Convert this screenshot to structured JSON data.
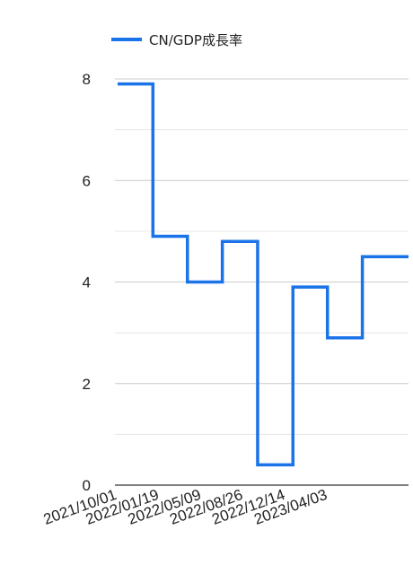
{
  "chart_data": {
    "type": "line",
    "step": true,
    "x_tick_labels": [
      "2021/10/01",
      "2022/01/19",
      "2022/05/09",
      "2022/08/26",
      "2022/12/14",
      "2023/04/03"
    ],
    "y_ticks": [
      "0",
      "2",
      "4",
      "6",
      "8"
    ],
    "ylim": [
      0,
      8
    ],
    "grid": true,
    "legend_position": "top",
    "series": [
      {
        "name": "CN/GDP成長率",
        "color": "#1a73e8",
        "x": [
          "2021/10/01",
          "2022/01/01",
          "2022/04/01",
          "2022/07/01",
          "2022/10/01",
          "2023/01/01",
          "2023/04/01",
          "2023/07/01"
        ],
        "values": [
          7.9,
          4.9,
          4.0,
          4.8,
          0.4,
          3.9,
          2.9,
          4.5
        ]
      }
    ]
  }
}
